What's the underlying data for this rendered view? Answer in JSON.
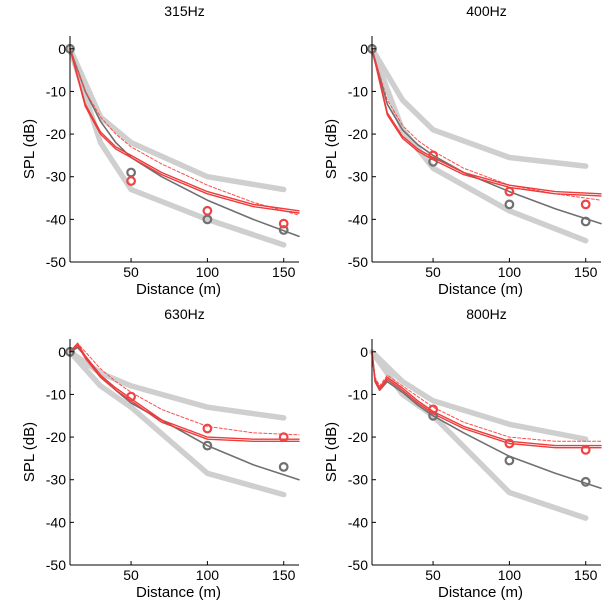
{
  "figure": {
    "xlabel": "Distance (m)",
    "ylabel": "SPL (dB)"
  },
  "colors": {
    "envelope": "#cfcfcf",
    "simulation": "#707070",
    "measured_red": "#ee3b3b",
    "dashed_red": "#ff4d4d",
    "marker_gray": "#707070",
    "marker_red": "#ee4444"
  },
  "chart_data": [
    {
      "type": "line",
      "title": "315Hz",
      "xlabel": "Distance (m)",
      "ylabel": "SPL (dB)",
      "xlim": [
        10,
        160
      ],
      "ylim": [
        -50,
        3
      ],
      "xticks": [
        50,
        100,
        150
      ],
      "yticks": [
        0,
        -10,
        -20,
        -30,
        -40,
        -50
      ],
      "grid": false,
      "series": [
        {
          "role": "envelope-upper",
          "x": [
            10,
            30,
            50,
            100,
            150
          ],
          "y": [
            0,
            -16,
            -22,
            -30,
            -33
          ]
        },
        {
          "role": "envelope-lower",
          "x": [
            10,
            30,
            50,
            100,
            150
          ],
          "y": [
            0,
            -22,
            -33,
            -40,
            -46
          ]
        },
        {
          "role": "gray-line",
          "x": [
            10,
            20,
            30,
            40,
            50,
            70,
            100,
            130,
            160
          ],
          "y": [
            0,
            -10,
            -17,
            -22,
            -25.5,
            -30,
            -35.5,
            -40,
            -44
          ]
        },
        {
          "role": "red-solid-1",
          "x": [
            10,
            20,
            30,
            40,
            50,
            70,
            100,
            130,
            160
          ],
          "y": [
            0,
            -13,
            -19.5,
            -23,
            -25,
            -29,
            -33.5,
            -36.5,
            -38
          ]
        },
        {
          "role": "red-solid-2",
          "x": [
            10,
            20,
            30,
            40,
            50,
            70,
            100,
            130,
            160
          ],
          "y": [
            0,
            -13.5,
            -20,
            -23.5,
            -25.5,
            -29.5,
            -34,
            -37,
            -38.5
          ]
        },
        {
          "role": "red-dashed",
          "x": [
            10,
            20,
            30,
            40,
            50,
            70,
            100,
            130,
            160
          ],
          "y": [
            0,
            -10,
            -16,
            -20,
            -23,
            -27,
            -32,
            -36,
            -39
          ]
        },
        {
          "role": "gray-markers",
          "x": [
            10,
            50,
            100,
            150
          ],
          "y": [
            0,
            -29,
            -40,
            -42.5
          ]
        },
        {
          "role": "red-markers",
          "x": [
            50,
            100,
            150
          ],
          "y": [
            -31,
            -38,
            -41
          ]
        }
      ]
    },
    {
      "type": "line",
      "title": "400Hz",
      "xlabel": "Distance (m)",
      "ylabel": "SPL (dB)",
      "xlim": [
        10,
        160
      ],
      "ylim": [
        -50,
        3
      ],
      "xticks": [
        50,
        100,
        150
      ],
      "yticks": [
        0,
        -10,
        -20,
        -30,
        -40,
        -50
      ],
      "grid": false,
      "series": [
        {
          "role": "envelope-upper",
          "x": [
            10,
            30,
            50,
            100,
            150
          ],
          "y": [
            0,
            -12,
            -19,
            -25.5,
            -27.5
          ]
        },
        {
          "role": "envelope-lower",
          "x": [
            10,
            30,
            50,
            100,
            150
          ],
          "y": [
            0,
            -19,
            -28,
            -38,
            -45
          ]
        },
        {
          "role": "gray-line",
          "x": [
            10,
            20,
            30,
            40,
            50,
            70,
            100,
            130,
            160
          ],
          "y": [
            0,
            -13,
            -19,
            -22.5,
            -25,
            -29,
            -33.5,
            -37.5,
            -41
          ]
        },
        {
          "role": "red-solid-1",
          "x": [
            10,
            20,
            30,
            40,
            50,
            70,
            100,
            130,
            160
          ],
          "y": [
            0,
            -15,
            -20.5,
            -23.5,
            -25.5,
            -29,
            -32,
            -33.5,
            -34
          ]
        },
        {
          "role": "red-solid-2",
          "x": [
            10,
            20,
            30,
            40,
            50,
            70,
            100,
            130,
            160
          ],
          "y": [
            0,
            -15.5,
            -21,
            -24,
            -26,
            -29.5,
            -32.5,
            -34,
            -34.5
          ]
        },
        {
          "role": "red-dashed",
          "x": [
            10,
            20,
            30,
            40,
            50,
            70,
            100,
            130,
            160
          ],
          "y": [
            0,
            -12,
            -18,
            -21.5,
            -24,
            -28,
            -32,
            -34,
            -35.5
          ]
        },
        {
          "role": "gray-markers",
          "x": [
            10,
            50,
            100,
            150
          ],
          "y": [
            0,
            -26.5,
            -36.5,
            -40.5
          ]
        },
        {
          "role": "red-markers",
          "x": [
            50,
            100,
            150
          ],
          "y": [
            -25,
            -33.5,
            -36.5
          ]
        }
      ]
    },
    {
      "type": "line",
      "title": "630Hz",
      "xlabel": "Distance (m)",
      "ylabel": "SPL (dB)",
      "xlim": [
        10,
        160
      ],
      "ylim": [
        -50,
        3
      ],
      "xticks": [
        50,
        100,
        150
      ],
      "yticks": [
        0,
        -10,
        -20,
        -30,
        -40,
        -50
      ],
      "grid": false,
      "series": [
        {
          "role": "envelope-upper",
          "x": [
            10,
            30,
            50,
            100,
            150
          ],
          "y": [
            0,
            -5,
            -8,
            -13,
            -15.5
          ]
        },
        {
          "role": "envelope-lower",
          "x": [
            10,
            30,
            50,
            100,
            150
          ],
          "y": [
            0,
            -8,
            -13,
            -28.5,
            -33.5
          ]
        },
        {
          "role": "gray-line",
          "x": [
            10,
            15,
            20,
            30,
            40,
            50,
            70,
            100,
            130,
            160
          ],
          "y": [
            0,
            1,
            -1,
            -5.5,
            -9,
            -12,
            -16,
            -22,
            -26.5,
            -30
          ]
        },
        {
          "role": "red-solid-1",
          "x": [
            10,
            15,
            20,
            30,
            40,
            50,
            70,
            100,
            130,
            160
          ],
          "y": [
            0,
            2,
            -1,
            -5.5,
            -8.5,
            -11,
            -16,
            -20,
            -20.5,
            -20.5
          ]
        },
        {
          "role": "red-solid-2",
          "x": [
            10,
            15,
            20,
            30,
            40,
            50,
            70,
            100,
            130,
            160
          ],
          "y": [
            0,
            1.5,
            -1.5,
            -6,
            -9,
            -11.5,
            -16.5,
            -20.5,
            -21,
            -21
          ]
        },
        {
          "role": "red-dashed",
          "x": [
            10,
            15,
            20,
            30,
            40,
            50,
            70,
            100,
            130,
            160
          ],
          "y": [
            0,
            2,
            0,
            -4,
            -7,
            -9.5,
            -13.5,
            -17.5,
            -19,
            -19.5
          ]
        },
        {
          "role": "gray-markers",
          "x": [
            10,
            100,
            150
          ],
          "y": [
            0,
            -22,
            -27
          ]
        },
        {
          "role": "red-markers",
          "x": [
            50,
            100,
            150
          ],
          "y": [
            -10.5,
            -18,
            -20
          ]
        }
      ]
    },
    {
      "type": "line",
      "title": "800Hz",
      "xlabel": "Distance (m)",
      "ylabel": "SPL (dB)",
      "xlim": [
        10,
        160
      ],
      "ylim": [
        -50,
        3
      ],
      "xticks": [
        50,
        100,
        150
      ],
      "yticks": [
        0,
        -10,
        -20,
        -30,
        -40,
        -50
      ],
      "grid": false,
      "series": [
        {
          "role": "envelope-upper",
          "x": [
            10,
            30,
            50,
            100,
            150
          ],
          "y": [
            0,
            -7,
            -11.5,
            -17,
            -20.5
          ]
        },
        {
          "role": "envelope-lower",
          "x": [
            10,
            30,
            50,
            100,
            150
          ],
          "y": [
            0,
            -10,
            -15,
            -33,
            -39
          ]
        },
        {
          "role": "gray-line",
          "x": [
            10,
            12,
            15,
            20,
            30,
            40,
            50,
            70,
            100,
            130,
            160
          ],
          "y": [
            0,
            -7,
            -9,
            -7,
            -9.5,
            -12.5,
            -15,
            -19,
            -24.5,
            -28.5,
            -32
          ]
        },
        {
          "role": "red-solid-1",
          "x": [
            10,
            12,
            15,
            20,
            30,
            40,
            50,
            70,
            100,
            130,
            160
          ],
          "y": [
            0,
            -6.5,
            -8.5,
            -6,
            -8.5,
            -11.5,
            -14,
            -17.5,
            -21,
            -22,
            -22
          ]
        },
        {
          "role": "red-solid-2",
          "x": [
            10,
            12,
            15,
            20,
            30,
            40,
            50,
            70,
            100,
            130,
            160
          ],
          "y": [
            0,
            -7,
            -9,
            -6.5,
            -9,
            -12,
            -14.5,
            -18,
            -21.5,
            -22.5,
            -22.5
          ]
        },
        {
          "role": "red-dashed",
          "x": [
            10,
            12,
            15,
            20,
            30,
            40,
            50,
            70,
            100,
            130,
            160
          ],
          "y": [
            0,
            -6,
            -8,
            -5.5,
            -8,
            -10.5,
            -13,
            -16.5,
            -20,
            -21,
            -21
          ]
        },
        {
          "role": "gray-markers",
          "x": [
            50,
            100,
            150
          ],
          "y": [
            -15,
            -25.5,
            -30.5
          ]
        },
        {
          "role": "red-markers",
          "x": [
            50,
            100,
            150
          ],
          "y": [
            -13.5,
            -21.5,
            -23
          ]
        }
      ]
    }
  ]
}
